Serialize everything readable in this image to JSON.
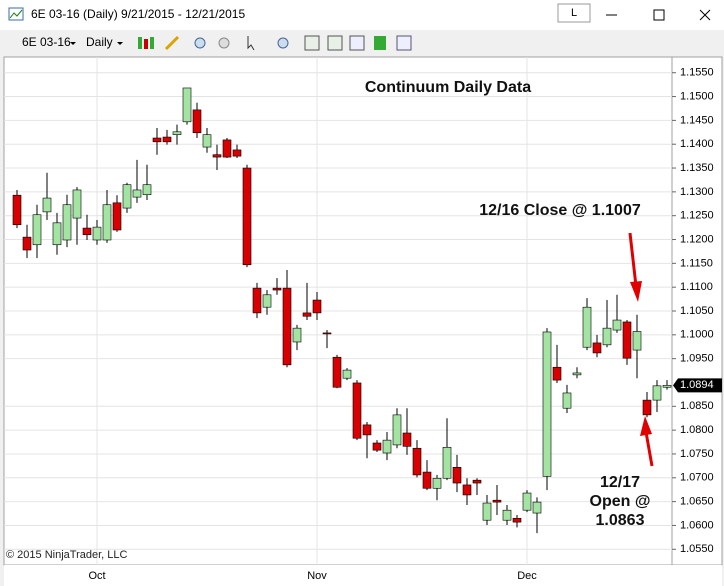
{
  "window": {
    "title": "6E 03-16 (Daily)  9/21/2015 - 12/21/2015",
    "button": "L"
  },
  "toolbar": {
    "instrument": "6E 03-16",
    "interval": "Daily"
  },
  "chart_data": {
    "type": "candlestick",
    "title": "Continuum Daily Data",
    "footnote": "© 2015 NinjaTrader, LLC",
    "categories": [
      null,
      null,
      null,
      null,
      null,
      null,
      null,
      null,
      "Oct",
      null,
      null,
      null,
      null,
      null,
      null,
      null,
      null,
      null,
      null,
      null,
      null,
      null,
      null,
      null,
      null,
      null,
      null,
      null,
      null,
      null,
      "Nov",
      null,
      null,
      null,
      null,
      null,
      null,
      null,
      null,
      null,
      null,
      null,
      null,
      null,
      null,
      null,
      null,
      null,
      null,
      null,
      null,
      "Dec",
      null,
      null,
      null,
      null,
      null,
      null,
      null,
      null,
      null,
      null,
      null,
      null,
      null,
      null
    ],
    "open": [
      1.1293,
      1.1205,
      1.1189,
      1.1258,
      1.1189,
      1.1199,
      1.1245,
      1.1224,
      1.1199,
      1.1199,
      1.1277,
      1.1266,
      1.1289,
      1.1294,
      1.1413,
      1.1415,
      1.142,
      1.1447,
      1.1472,
      1.1394,
      1.1378,
      1.1409,
      1.1388,
      1.135,
      1.1098,
      1.1058,
      1.1098,
      1.1098,
      1.0985,
      1.1046,
      1.1073,
      1.1004,
      1.0953,
      1.0909,
      1.0899,
      1.0811,
      1.0773,
      1.0752,
      1.0769,
      1.0794,
      1.0762,
      1.0712,
      1.0678,
      1.0699,
      1.0722,
      1.0685,
      1.0695,
      1.0611,
      1.0653,
      1.0611,
      1.0615,
      1.0632,
      1.0626,
      1.0703,
      1.0932,
      1.0846,
      1.0916,
      1.0974,
      1.0983,
      1.0979,
      1.101,
      1.1027,
      1.0968,
      1.0863,
      1.0863,
      1.089
    ],
    "high": [
      1.1304,
      1.1231,
      1.1273,
      1.134,
      1.1256,
      1.1294,
      1.131,
      1.1252,
      1.1241,
      1.1304,
      1.1293,
      1.1319,
      1.1367,
      1.1357,
      1.1434,
      1.143,
      1.1441,
      1.1518,
      1.1487,
      1.1434,
      1.1399,
      1.1413,
      1.1399,
      1.1357,
      1.1109,
      1.1094,
      1.1119,
      1.1136,
      1.1021,
      1.1109,
      1.109,
      1.101,
      1.0958,
      1.093,
      1.0905,
      1.0817,
      1.0779,
      1.0796,
      1.0846,
      1.0846,
      1.0779,
      1.0737,
      1.0706,
      1.0825,
      1.0748,
      1.0699,
      1.0699,
      1.0664,
      1.0685,
      1.0643,
      1.0622,
      1.0674,
      1.0659,
      1.1014,
      1.0979,
      1.0895,
      1.0932,
      1.1077,
      1.1,
      1.1073,
      1.1084,
      1.1031,
      1.1042,
      1.088,
      1.0905,
      1.0905
    ],
    "low": [
      1.1224,
      1.1161,
      1.1161,
      1.1241,
      1.1168,
      1.1184,
      1.1189,
      1.1199,
      1.1189,
      1.1193,
      1.1216,
      1.1256,
      1.1277,
      1.1283,
      1.1378,
      1.1399,
      1.1399,
      1.1441,
      1.1413,
      1.1382,
      1.1346,
      1.1371,
      1.1371,
      1.1142,
      1.1035,
      1.1042,
      1.1084,
      1.0932,
      1.0968,
      1.1031,
      1.1031,
      1.0972,
      1.0888,
      1.0905,
      1.0779,
      1.0741,
      1.0754,
      1.0737,
      1.0762,
      1.0748,
      1.0701,
      1.0674,
      1.0653,
      1.0695,
      1.067,
      1.0643,
      1.0664,
      1.0601,
      1.0622,
      1.0601,
      1.0596,
      1.0628,
      1.0584,
      1.0674,
      1.0899,
      1.0836,
      1.0909,
      1.0968,
      1.0953,
      1.0974,
      1.1004,
      1.0937,
      1.0909,
      1.0827,
      1.0838,
      1.0885
    ],
    "close": [
      1.1231,
      1.1178,
      1.1252,
      1.1287,
      1.1235,
      1.1273,
      1.1304,
      1.121,
      1.1226,
      1.1273,
      1.122,
      1.1315,
      1.1304,
      1.1315,
      1.1405,
      1.1405,
      1.1426,
      1.1518,
      1.1424,
      1.142,
      1.1373,
      1.1373,
      1.1375,
      1.1147,
      1.1046,
      1.1084,
      1.1094,
      1.0937,
      1.1014,
      1.1039,
      1.1046,
      1.1002,
      1.089,
      1.0926,
      1.0783,
      1.079,
      1.0758,
      1.0779,
      1.0832,
      1.0766,
      1.0706,
      1.0678,
      1.0699,
      1.0764,
      1.0689,
      1.0664,
      1.0689,
      1.0647,
      1.0649,
      1.0632,
      1.0607,
      1.0668,
      1.0649,
      1.1006,
      1.0905,
      1.0878,
      1.092,
      1.1058,
      1.0962,
      1.1014,
      1.1031,
      1.0951,
      1.1007,
      1.0832,
      1.0893,
      1.0894
    ],
    "up_color": "#a3e4a3",
    "down_color": "#d80000",
    "last_price": 1.0894,
    "ylim": [
      1.0517,
      1.1583
    ],
    "yticks": [
      {
        "value": 1.155,
        "label": "1.1550"
      },
      {
        "value": 1.15,
        "label": "1.1500"
      },
      {
        "value": 1.145,
        "label": "1.1450"
      },
      {
        "value": 1.14,
        "label": "1.1400"
      },
      {
        "value": 1.135,
        "label": "1.1350"
      },
      {
        "value": 1.13,
        "label": "1.1300"
      },
      {
        "value": 1.125,
        "label": "1.1250"
      },
      {
        "value": 1.12,
        "label": "1.1200"
      },
      {
        "value": 1.115,
        "label": "1.1150"
      },
      {
        "value": 1.11,
        "label": "1.1100"
      },
      {
        "value": 1.105,
        "label": "1.1050"
      },
      {
        "value": 1.1,
        "label": "1.1000"
      },
      {
        "value": 1.095,
        "label": "1.0950"
      },
      {
        "value": 1.085,
        "label": "1.0850"
      },
      {
        "value": 1.08,
        "label": "1.0800"
      },
      {
        "value": 1.075,
        "label": "1.0750"
      },
      {
        "value": 1.07,
        "label": "1.0700"
      },
      {
        "value": 1.065,
        "label": "1.0650"
      },
      {
        "value": 1.06,
        "label": "1.0600"
      },
      {
        "value": 1.055,
        "label": "1.0550"
      }
    ],
    "grid": true,
    "annotations": [
      {
        "text": "12/16 Close @ 1.1007"
      },
      {
        "lines": [
          "12/17",
          "Open @",
          "1.0863"
        ]
      }
    ]
  }
}
